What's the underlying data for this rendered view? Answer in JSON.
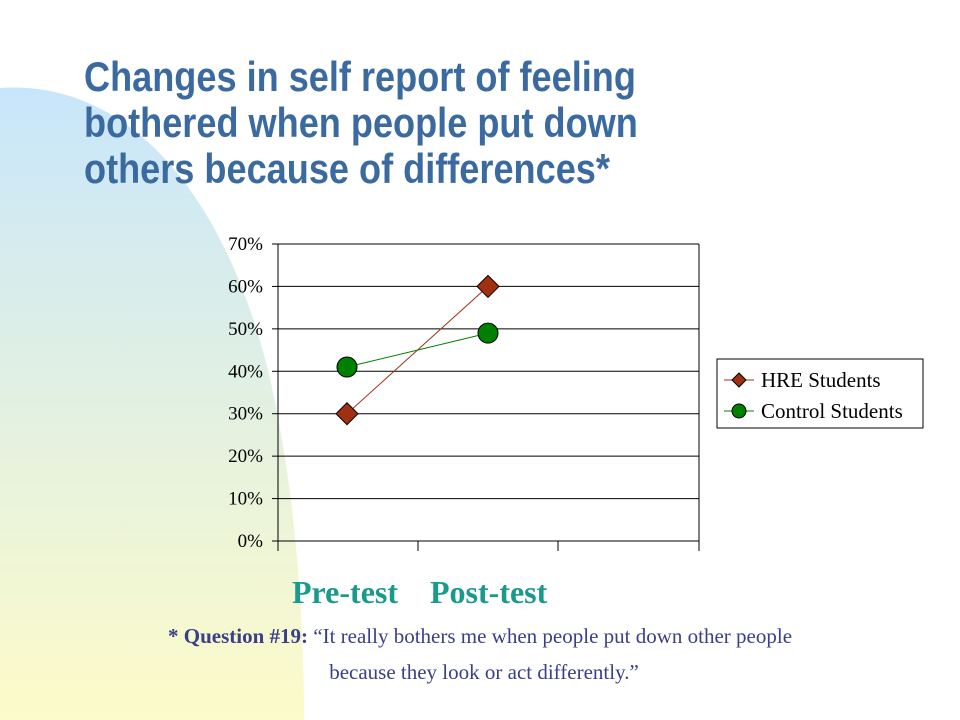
{
  "slide": {
    "title_lines": [
      "Changes in self report of feeling",
      "bothered when people put down",
      "others because of differences*"
    ],
    "footnote": {
      "lead": "* Question #19:",
      "quote_line1": " “It really bothers me when people put down other people",
      "quote_line2": "because they look or act differently.”"
    },
    "colors": {
      "title": "#3b6aa0",
      "footnote": "#3a3f87",
      "category_labels": "#1a9a8c",
      "background_gradient_top": "#c8e6fb",
      "background_gradient_bottom": "#fdfbc9"
    }
  },
  "chart_data": {
    "type": "line",
    "categories": [
      "Pre-test",
      "Post-test"
    ],
    "series": [
      {
        "name": "HRE Students",
        "values": [
          30,
          60
        ],
        "color": "#a03010",
        "marker": "diamond"
      },
      {
        "name": "Control Students",
        "values": [
          41,
          49
        ],
        "color": "#008000",
        "marker": "circle"
      }
    ],
    "ylim": [
      0,
      70
    ],
    "yticks": [
      "0%",
      "10%",
      "20%",
      "30%",
      "40%",
      "50%",
      "60%",
      "70%"
    ],
    "grid": true,
    "legend_position": "right"
  }
}
